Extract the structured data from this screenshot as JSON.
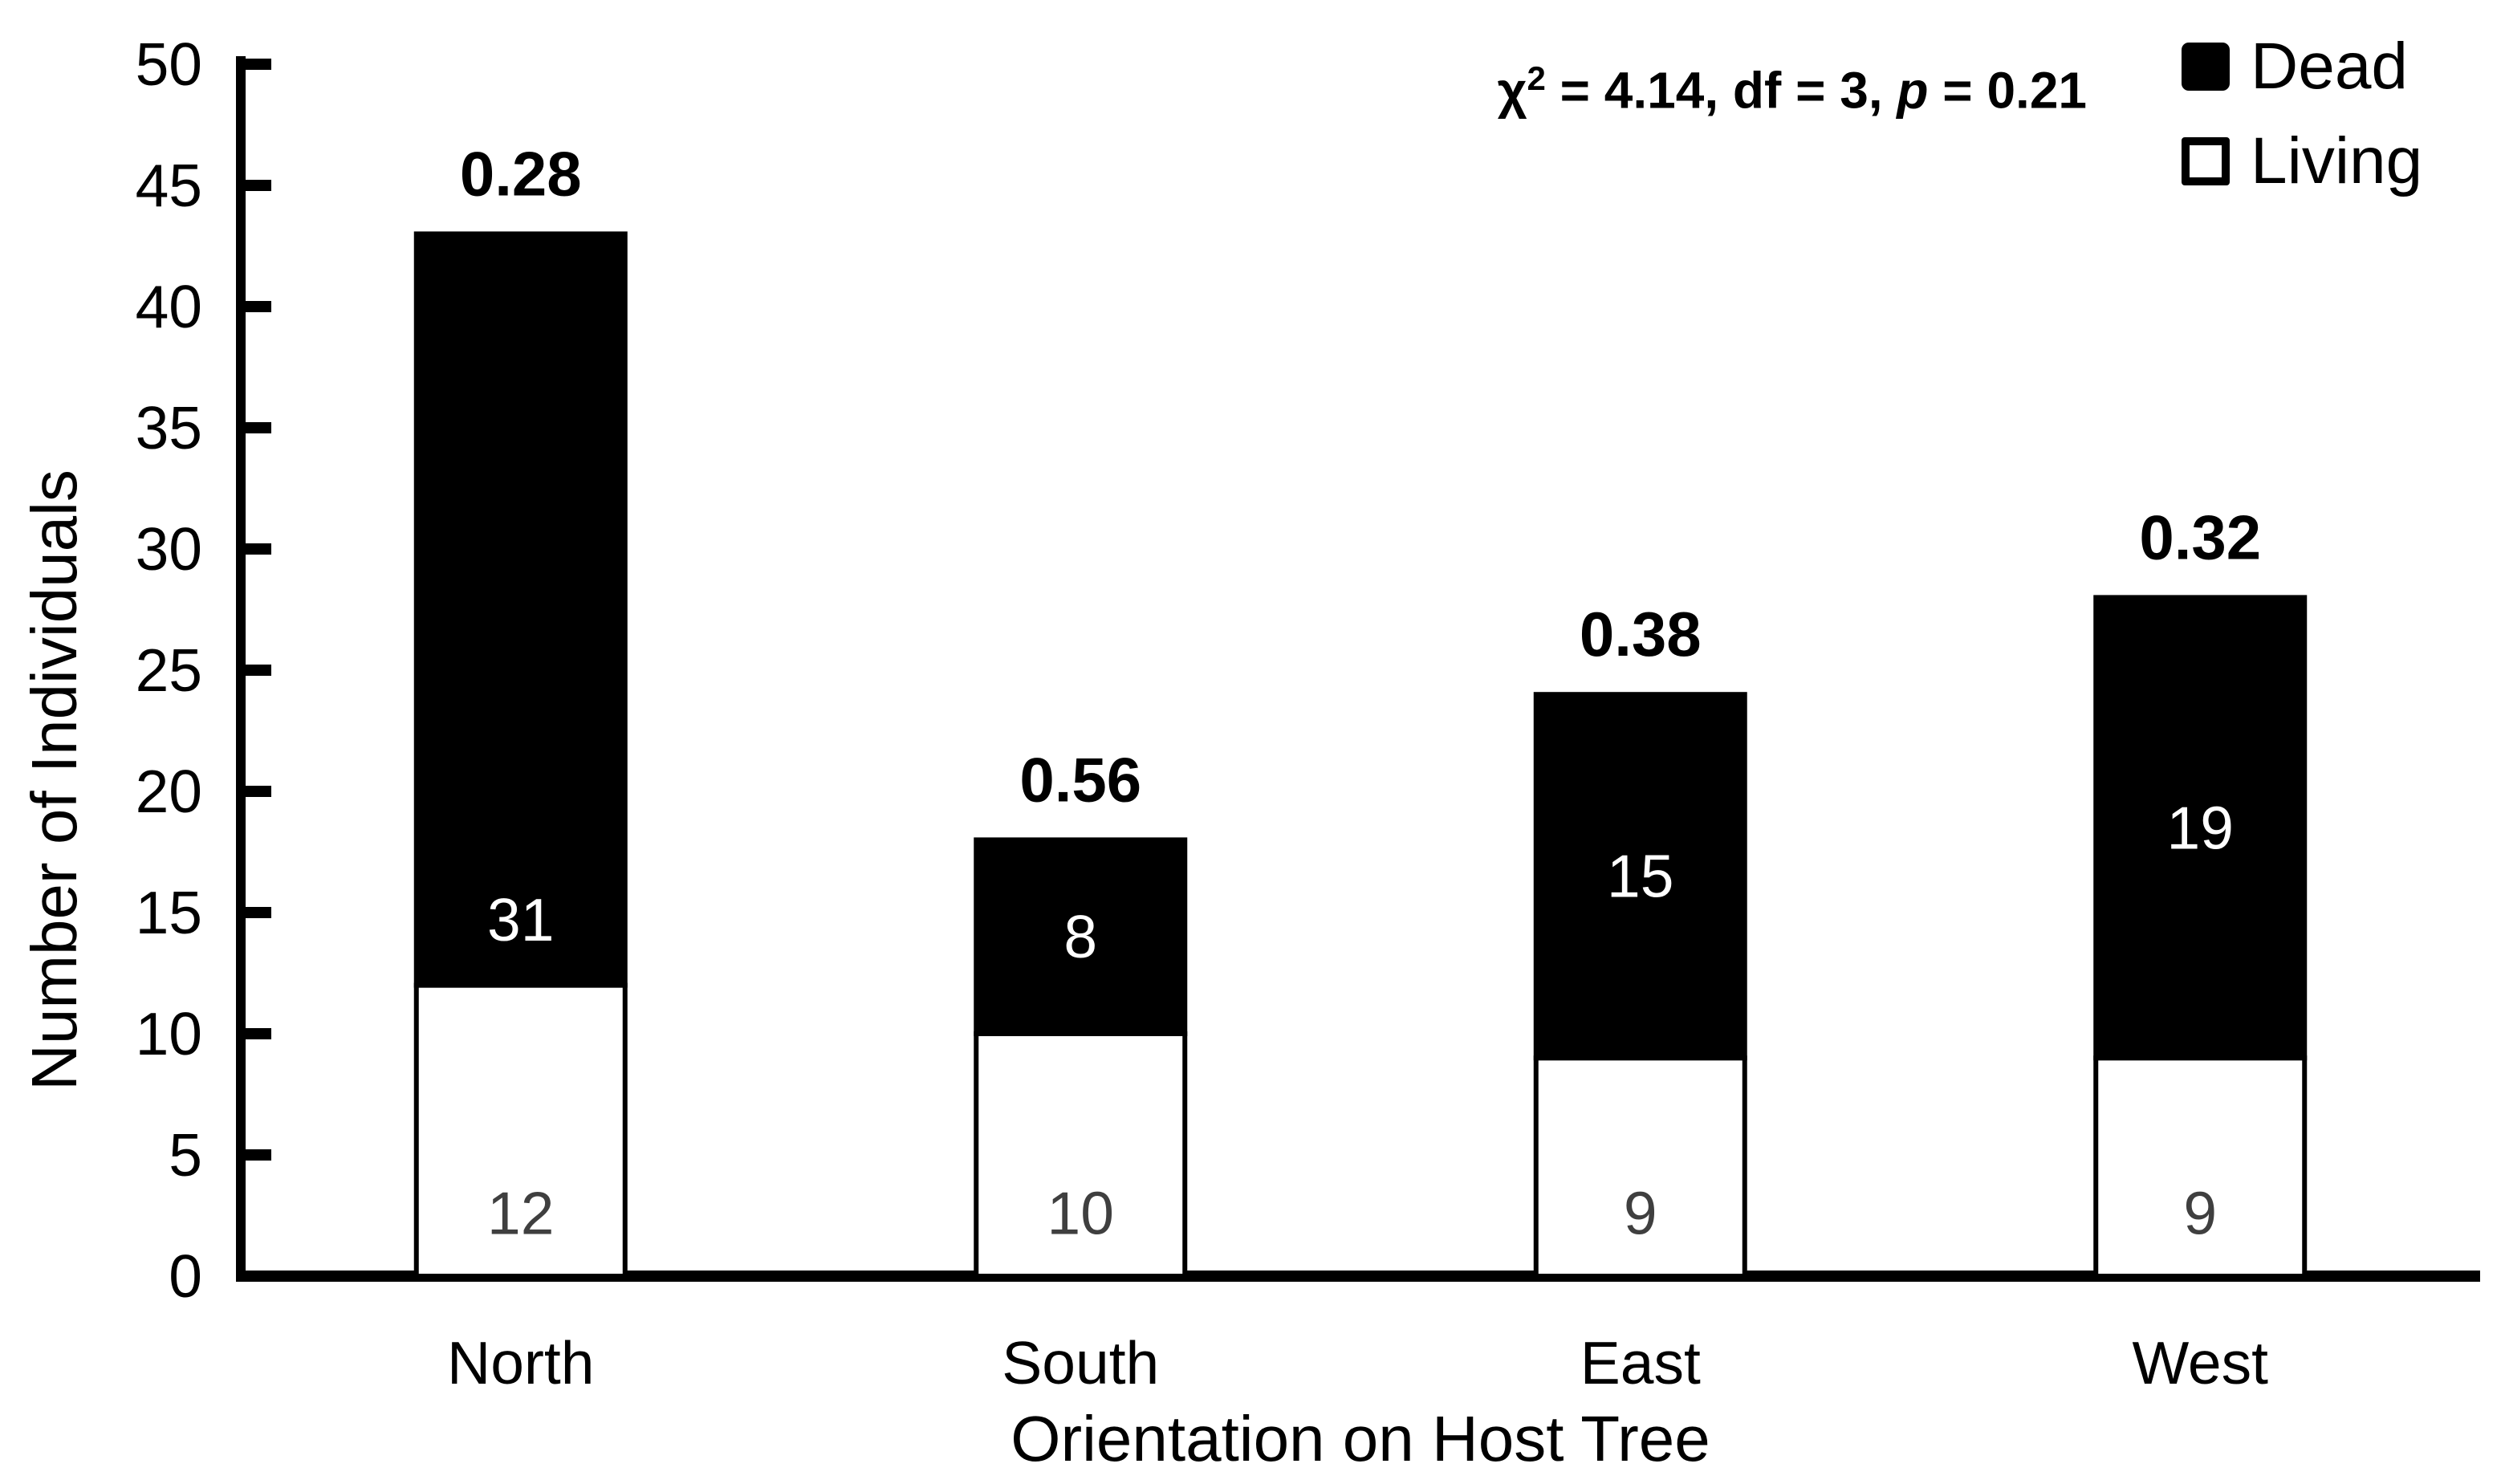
{
  "chart_data": {
    "type": "bar",
    "stacked": true,
    "title": "",
    "xlabel": "Orientation on Host Tree",
    "ylabel": "Number of Individuals",
    "categories": [
      "North",
      "South",
      "East",
      "West"
    ],
    "series": [
      {
        "name": "Living",
        "color": "#FFFFFF",
        "values": [
          12,
          10,
          9,
          9
        ]
      },
      {
        "name": "Dead",
        "color": "#000000",
        "values": [
          31,
          8,
          15,
          19
        ]
      }
    ],
    "totals": [
      43,
      18,
      24,
      28
    ],
    "bar_top_labels": [
      "0.28",
      "0.56",
      "0.38",
      "0.32"
    ],
    "ylim": [
      0,
      50
    ],
    "ytick_step": 5,
    "ytick_labels": [
      "0",
      "5",
      "10",
      "15",
      "20",
      "25",
      "30",
      "35",
      "40",
      "45",
      "50"
    ],
    "grid": false,
    "legend_position": "top-right",
    "legend": {
      "entries": [
        {
          "label": "Dead",
          "fill": "#000000"
        },
        {
          "label": "Living",
          "fill": "#FFFFFF"
        }
      ]
    },
    "annotation": {
      "chi": "χ",
      "sup": "2",
      "mid": " = 4.14, df = 3, ",
      "p": "p",
      "tail": " = 0.21"
    },
    "value_label_colors": {
      "dead": "#FFFFFF",
      "living": "#3F3F3F"
    },
    "dead_label_at_value": [
      14.7,
      14,
      16.5,
      18.5
    ],
    "living_label_at_value": 2.6
  }
}
